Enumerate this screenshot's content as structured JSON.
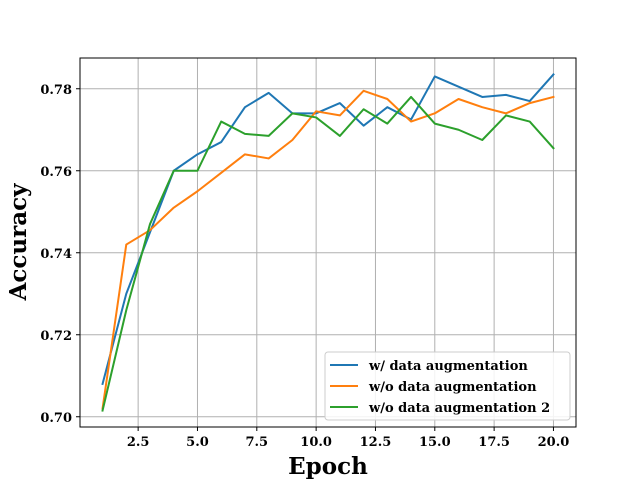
{
  "chart_data": {
    "type": "line",
    "title": "",
    "xlabel": "Epoch",
    "ylabel": "Accuracy",
    "xlim": [
      0.05,
      20.95
    ],
    "ylim": [
      0.6975,
      0.7875
    ],
    "x_ticks": [
      2.5,
      5.0,
      7.5,
      10.0,
      12.5,
      15.0,
      17.5,
      20.0
    ],
    "x_tick_labels": [
      "2.5",
      "5.0",
      "7.5",
      "10.0",
      "12.5",
      "15.0",
      "17.5",
      "20.0"
    ],
    "y_ticks": [
      0.7,
      0.72,
      0.74,
      0.76,
      0.78
    ],
    "y_tick_labels": [
      "0.70",
      "0.72",
      "0.74",
      "0.76",
      "0.78"
    ],
    "grid": true,
    "legend_position": "lower-right",
    "x": [
      1,
      2,
      3,
      4,
      5,
      6,
      7,
      8,
      9,
      10,
      11,
      12,
      13,
      14,
      15,
      16,
      17,
      18,
      19,
      20
    ],
    "series": [
      {
        "name": "w/ data augmentation",
        "color": "#1f77b4",
        "values": [
          0.708,
          0.73,
          0.745,
          0.76,
          0.764,
          0.767,
          0.7755,
          0.779,
          0.774,
          0.774,
          0.7765,
          0.771,
          0.7755,
          0.7725,
          0.783,
          0.7805,
          0.778,
          0.7785,
          0.777,
          0.7835
        ]
      },
      {
        "name": "w/o data augmentation",
        "color": "#ff7f0e",
        "values": [
          0.702,
          0.742,
          0.7455,
          0.751,
          0.755,
          0.7595,
          0.764,
          0.763,
          0.7675,
          0.7745,
          0.7735,
          0.7795,
          0.7775,
          0.772,
          0.774,
          0.7775,
          0.7755,
          0.774,
          0.7765,
          0.778
        ]
      },
      {
        "name": "w/o data augmentation 2",
        "color": "#2ca02c",
        "values": [
          0.7015,
          0.726,
          0.747,
          0.76,
          0.76,
          0.772,
          0.769,
          0.7685,
          0.774,
          0.773,
          0.7685,
          0.775,
          0.7715,
          0.778,
          0.7715,
          0.77,
          0.7675,
          0.7735,
          0.772,
          0.7655
        ]
      }
    ]
  }
}
